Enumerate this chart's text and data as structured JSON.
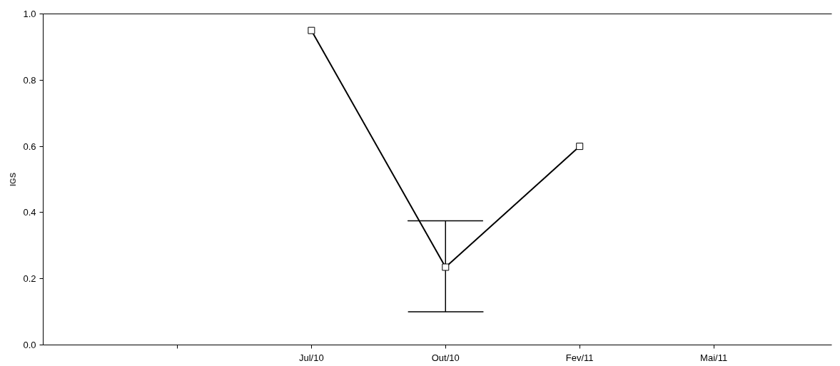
{
  "chart_data": {
    "type": "line",
    "ylabel": "IGS",
    "categories": [
      null,
      "Jul/10",
      "Out/10",
      "Fev/11",
      "Mai/11"
    ],
    "series": [
      {
        "color": "#000000",
        "values": [
          null,
          0.95,
          0.235,
          0.6,
          null
        ],
        "errors": [
          null,
          null,
          [
            0.1,
            0.375
          ],
          null,
          null
        ]
      }
    ],
    "ylim": [
      0,
      1
    ],
    "yticks": [
      {
        "value": 0,
        "label": "0.0"
      },
      {
        "value": 0.2,
        "label": "0.2"
      },
      {
        "value": 0.4,
        "label": "0.4"
      },
      {
        "value": 0.6,
        "label": "0.6"
      },
      {
        "value": 0.8,
        "label": "0.8"
      },
      {
        "value": 1,
        "label": "1.0"
      }
    ],
    "marker": "square",
    "line_style": "solid"
  }
}
